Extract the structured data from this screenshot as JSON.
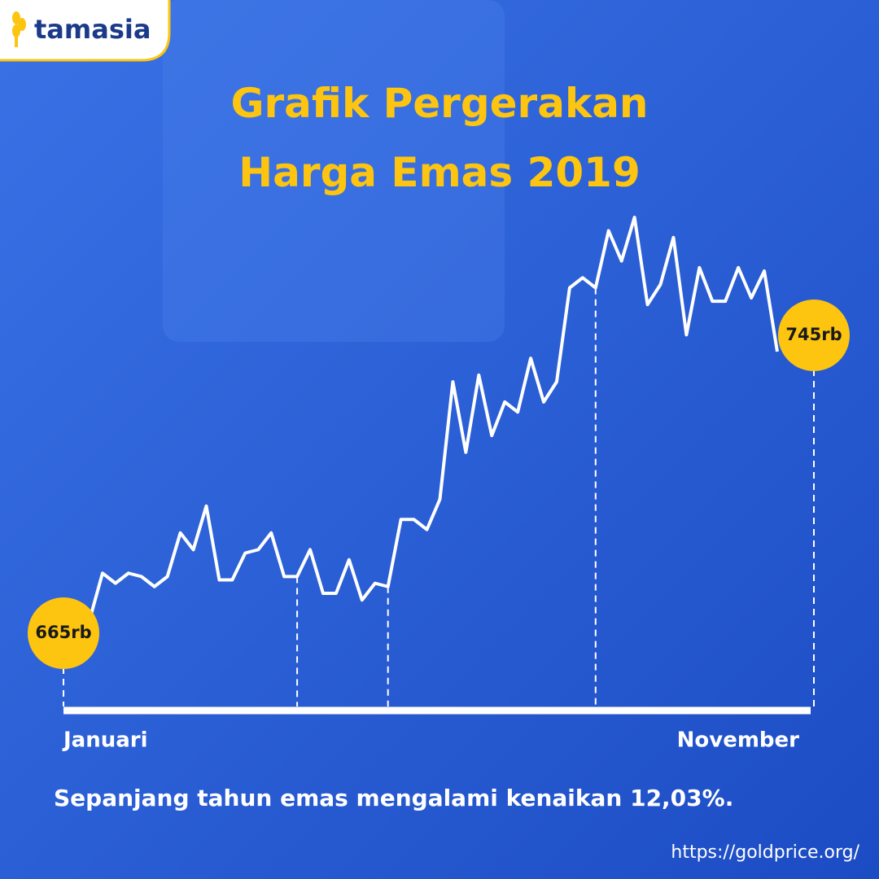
{
  "brand": "tamasia",
  "chart_data": {
    "type": "line",
    "title": "Grafik Pergerakan Harga Emas 2019",
    "x_labels": [
      "Januari",
      "November"
    ],
    "series": [
      {
        "color": "#ffffff",
        "values": [
          665,
          679,
          676,
          679,
          678,
          675,
          678,
          691,
          686,
          699,
          677,
          677,
          685,
          686,
          691,
          678,
          678,
          686,
          673,
          673,
          683,
          671,
          676,
          675,
          695,
          695,
          692,
          701,
          736,
          715,
          738,
          720,
          730,
          727,
          743,
          730,
          736,
          764,
          767,
          764,
          781,
          772,
          785,
          759,
          765,
          779,
          750,
          770,
          760,
          760,
          770,
          761,
          769,
          745
        ],
        "value_labels": [
          "665rb",
          null,
          null,
          null,
          null,
          null,
          null,
          null,
          null,
          null,
          null,
          null,
          null,
          null,
          null,
          null,
          null,
          null,
          null,
          null,
          null,
          null,
          null,
          null,
          null,
          null,
          null,
          null,
          null,
          null,
          null,
          null,
          null,
          null,
          null,
          null,
          null,
          null,
          null,
          null,
          null,
          null,
          null,
          null,
          null,
          null,
          null,
          null,
          null,
          null,
          null,
          null,
          null,
          "745rb"
        ]
      }
    ],
    "marker_color": "#fdc50f",
    "note": "Sepanjang tahun emas mengalami kenaikan 12,03%."
  },
  "source": "https://goldprice.org/"
}
